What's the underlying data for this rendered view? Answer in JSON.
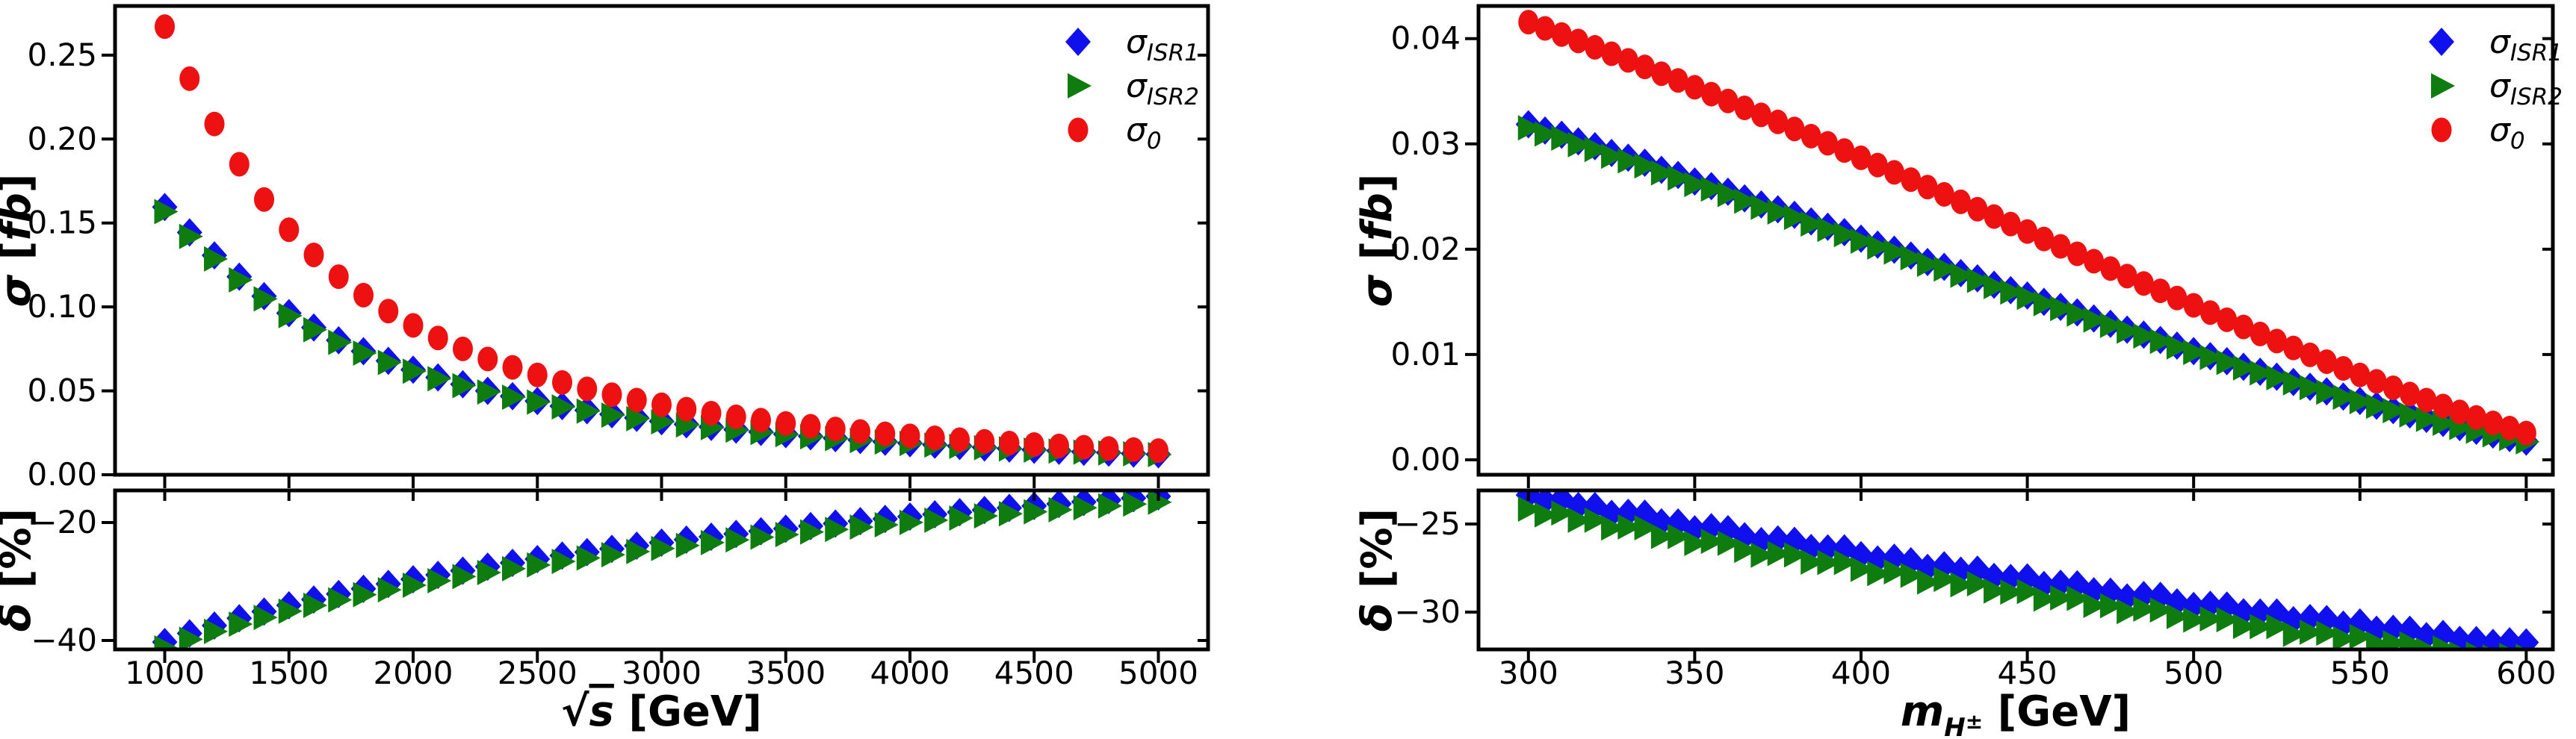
{
  "colors": {
    "sigma_isr1": "#1010ee",
    "sigma_isr2": "#0e7c0e",
    "sigma_0": "#ee1111",
    "axis": "#000000",
    "background": "#ffffff"
  },
  "legend": {
    "items": [
      {
        "series": "sigma_isr1",
        "base": "σ",
        "sub": "ISR1",
        "marker": "diamond"
      },
      {
        "series": "sigma_isr2",
        "base": "σ",
        "sub": "ISR2",
        "marker": "triangle-right"
      },
      {
        "series": "sigma_0",
        "base": "σ",
        "sub": "0",
        "marker": "circle"
      }
    ]
  },
  "chart_data": [
    {
      "id": "cross-section-vs-sqrt-s",
      "type": "scatter",
      "x_label": {
        "parts": [
          {
            "t": "√",
            "style": "normal"
          },
          {
            "t": "s",
            "style": "italic-overline"
          },
          {
            "t": " [GeV]",
            "style": "normal"
          }
        ]
      },
      "xlim": [
        800,
        5200
      ],
      "xticks": [
        1000,
        1500,
        2000,
        2500,
        3000,
        3500,
        4000,
        4500,
        5000
      ],
      "xtick_labels": [
        "1000",
        "1500",
        "2000",
        "2500",
        "3000",
        "3500",
        "4000",
        "4500",
        "5000"
      ],
      "x": [
        1000,
        1100,
        1200,
        1300,
        1400,
        1500,
        1600,
        1700,
        1800,
        1900,
        2000,
        2100,
        2200,
        2300,
        2400,
        2500,
        2600,
        2700,
        2800,
        2900,
        3000,
        3100,
        3200,
        3300,
        3400,
        3500,
        3600,
        3700,
        3800,
        3900,
        4000,
        4100,
        4200,
        4300,
        4400,
        4500,
        4600,
        4700,
        4800,
        4900,
        5000
      ],
      "panels": [
        {
          "name": "sigma",
          "y_label": {
            "sym": "σ",
            "rest": " [fb]",
            "rest_italic": "fb"
          },
          "ylim": [
            0,
            0.2793
          ],
          "yticks": [
            0,
            0.05,
            0.1,
            0.15,
            0.2,
            0.25
          ],
          "ytick_labels": [
            "0.00",
            "0.05",
            "0.10",
            "0.15",
            "0.20",
            "0.25"
          ],
          "series": [
            {
              "key": "sigma_isr1",
              "marker": "diamond",
              "values": [
                0.1595,
                0.1444,
                0.1307,
                0.118,
                0.1064,
                0.0963,
                0.0877,
                0.0801,
                0.0736,
                0.0679,
                0.0626,
                0.058,
                0.0539,
                0.05,
                0.0468,
                0.0439,
                0.0409,
                0.0384,
                0.036,
                0.0339,
                0.0319,
                0.0301,
                0.0285,
                0.0269,
                0.0255,
                0.0242,
                0.0229,
                0.0218,
                0.0207,
                0.0197,
                0.0188,
                0.0179,
                0.0171,
                0.0163,
                0.0156,
                0.0149,
                0.0143,
                0.0137,
                0.0132,
                0.0126,
                0.0122
              ]
            },
            {
              "key": "sigma_isr2",
              "marker": "triangle-right",
              "values": [
                0.1568,
                0.142,
                0.1286,
                0.1161,
                0.1048,
                0.0948,
                0.0864,
                0.0789,
                0.0725,
                0.0669,
                0.0617,
                0.0572,
                0.0531,
                0.0493,
                0.0462,
                0.0433,
                0.0404,
                0.0379,
                0.0355,
                0.0334,
                0.0315,
                0.0297,
                0.0281,
                0.0266,
                0.0252,
                0.0239,
                0.0226,
                0.0215,
                0.0204,
                0.0195,
                0.0186,
                0.0177,
                0.0169,
                0.0161,
                0.0154,
                0.0147,
                0.0141,
                0.0135,
                0.013,
                0.0125,
                0.012
              ]
            },
            {
              "key": "sigma_0",
              "marker": "circle",
              "values": [
                0.267,
                0.236,
                0.209,
                0.185,
                0.164,
                0.146,
                0.131,
                0.118,
                0.107,
                0.0975,
                0.089,
                0.0815,
                0.075,
                0.069,
                0.064,
                0.0595,
                0.055,
                0.0512,
                0.0477,
                0.0445,
                0.0417,
                0.0391,
                0.0367,
                0.0345,
                0.0325,
                0.0306,
                0.0289,
                0.0273,
                0.0258,
                0.0244,
                0.0232,
                0.022,
                0.0209,
                0.0199,
                0.0189,
                0.018,
                0.0172,
                0.0164,
                0.0157,
                0.015,
                0.0144
              ]
            }
          ]
        },
        {
          "name": "delta",
          "y_label": {
            "sym": "δ",
            "rest": " [%]",
            "rest_italic": ""
          },
          "ylim": [
            -41.52,
            -14.56
          ],
          "yticks": [
            -20,
            -40
          ],
          "ytick_labels": [
            "−20",
            "−40"
          ],
          "series": [
            {
              "key": "sigma_isr1",
              "marker": "diamond",
              "values": [
                -40.27,
                -38.8,
                -37.47,
                -36.24,
                -35.1,
                -34.04,
                -33.05,
                -32.12,
                -31.24,
                -30.41,
                -29.63,
                -28.88,
                -28.16,
                -27.48,
                -26.83,
                -26.2,
                -25.6,
                -25.02,
                -24.46,
                -23.92,
                -23.4,
                -22.9,
                -22.41,
                -21.94,
                -21.48,
                -21.04,
                -20.6,
                -20.18,
                -19.77,
                -19.38,
                -18.99,
                -18.61,
                -18.24,
                -17.88,
                -17.52,
                -17.18,
                -16.84,
                -16.51,
                -16.19,
                -15.87,
                -15.56
              ]
            },
            {
              "key": "sigma_isr2",
              "marker": "triangle-right",
              "values": [
                -41.27,
                -39.8,
                -38.47,
                -37.24,
                -36.1,
                -35.04,
                -34.05,
                -33.12,
                -32.24,
                -31.41,
                -30.63,
                -29.88,
                -29.16,
                -28.48,
                -27.83,
                -27.2,
                -26.6,
                -26.02,
                -25.46,
                -24.92,
                -24.4,
                -23.9,
                -23.41,
                -22.94,
                -22.48,
                -22.04,
                -21.6,
                -21.18,
                -20.77,
                -20.38,
                -19.99,
                -19.61,
                -19.24,
                -18.88,
                -18.52,
                -18.18,
                -17.84,
                -17.51,
                -17.19,
                -16.87,
                -16.56
              ]
            }
          ]
        }
      ]
    },
    {
      "id": "cross-section-vs-charged-higgs-mass",
      "type": "scatter",
      "x_label": {
        "parts": [
          {
            "t": "m",
            "style": "italic"
          },
          {
            "t": "H",
            "style": "sub-italic"
          },
          {
            "t": "±",
            "style": "sub-sup"
          },
          {
            "t": " [GeV]",
            "style": "normal"
          }
        ]
      },
      "xlim": [
        285,
        608
      ],
      "xticks": [
        300,
        350,
        400,
        450,
        500,
        550,
        600
      ],
      "xtick_labels": [
        "300",
        "350",
        "400",
        "450",
        "500",
        "550",
        "600"
      ],
      "x": [
        300,
        305,
        310,
        315,
        320,
        325,
        330,
        335,
        340,
        345,
        350,
        355,
        360,
        365,
        370,
        375,
        380,
        385,
        390,
        395,
        400,
        405,
        410,
        415,
        420,
        425,
        430,
        435,
        440,
        445,
        450,
        455,
        460,
        465,
        470,
        475,
        480,
        485,
        490,
        495,
        500,
        505,
        510,
        515,
        520,
        525,
        530,
        535,
        540,
        545,
        550,
        555,
        560,
        565,
        570,
        575,
        580,
        585,
        590,
        595,
        600
      ],
      "panels": [
        {
          "name": "sigma",
          "y_label": {
            "sym": "σ",
            "rest": " [fb]",
            "rest_italic": "fb"
          },
          "ylim": [
            -0.00142,
            0.0431
          ],
          "yticks": [
            0,
            0.01,
            0.02,
            0.03,
            0.04
          ],
          "ytick_labels": [
            "0.00",
            "0.01",
            "0.02",
            "0.03",
            "0.04"
          ],
          "series": [
            {
              "key": "sigma_isr1",
              "marker": "diamond",
              "values": [
                0.03186,
                0.03127,
                0.03087,
                0.03024,
                0.02978,
                0.02914,
                0.02869,
                0.02821,
                0.02754,
                0.02705,
                0.02643,
                0.02599,
                0.02546,
                0.02483,
                0.02425,
                0.02379,
                0.02327,
                0.02264,
                0.02213,
                0.02162,
                0.021,
                0.02043,
                0.01995,
                0.0194,
                0.01878,
                0.01832,
                0.01773,
                0.01723,
                0.01663,
                0.01611,
                0.0156,
                0.015,
                0.01452,
                0.014,
                0.01342,
                0.01292,
                0.01236,
                0.01189,
                0.01138,
                0.01084,
                0.01032,
                0.00984,
                0.00936,
                0.00883,
                0.00836,
                0.00789,
                0.00739,
                0.00694,
                0.00649,
                0.00601,
                0.00559,
                0.00514,
                0.00472,
                0.00431,
                0.00389,
                0.00351,
                0.00311,
                0.00275,
                0.0024,
                0.00206,
                0.00173
              ]
            },
            {
              "key": "sigma_isr2",
              "marker": "triangle-right",
              "values": [
                0.03153,
                0.03094,
                0.03055,
                0.02992,
                0.02947,
                0.02883,
                0.02839,
                0.02791,
                0.02725,
                0.02676,
                0.02615,
                0.02571,
                0.02519,
                0.02456,
                0.02399,
                0.02353,
                0.02302,
                0.02239,
                0.02189,
                0.02139,
                0.02077,
                0.02021,
                0.01973,
                0.01919,
                0.01857,
                0.01812,
                0.01753,
                0.01704,
                0.01645,
                0.01593,
                0.01543,
                0.01483,
                0.01436,
                0.01384,
                0.01327,
                0.01277,
                0.01222,
                0.01176,
                0.01125,
                0.01072,
                0.0102,
                0.00973,
                0.00925,
                0.00873,
                0.00826,
                0.0078,
                0.00731,
                0.00686,
                0.00642,
                0.00594,
                0.00553,
                0.00508,
                0.00467,
                0.00426,
                0.00384,
                0.00347,
                0.00307,
                0.00272,
                0.00237,
                0.00204,
                0.00171
              ]
            },
            {
              "key": "sigma_0",
              "marker": "circle",
              "values": [
                0.04157,
                0.04097,
                0.04039,
                0.03978,
                0.03917,
                0.03856,
                0.03793,
                0.03731,
                0.03667,
                0.03603,
                0.03538,
                0.03473,
                0.03408,
                0.03342,
                0.03276,
                0.03209,
                0.03142,
                0.03074,
                0.03006,
                0.02937,
                0.02868,
                0.02799,
                0.0273,
                0.02661,
                0.0259,
                0.02521,
                0.0245,
                0.0238,
                0.0231,
                0.02239,
                0.02168,
                0.02097,
                0.02027,
                0.01956,
                0.01886,
                0.01816,
                0.01745,
                0.01675,
                0.01605,
                0.01536,
                0.01467,
                0.01398,
                0.0133,
                0.01262,
                0.01195,
                0.01128,
                0.01062,
                0.00997,
                0.00932,
                0.00868,
                0.00806,
                0.00745,
                0.00684,
                0.00625,
                0.00567,
                0.00511,
                0.00455,
                0.00402,
                0.00351,
                0.00301,
                0.00254
              ]
            }
          ]
        },
        {
          "name": "delta",
          "y_label": {
            "sym": "δ",
            "rest": " [%]",
            "rest_italic": ""
          },
          "ylim": [
            -32.12,
            -23.09
          ],
          "yticks": [
            -25,
            -30
          ],
          "ytick_labels": [
            "−25",
            "−30"
          ],
          "series": [
            {
              "key": "sigma_isr1",
              "marker": "diamond",
              "values": [
                -23.35,
                -23.68,
                -23.57,
                -23.98,
                -23.98,
                -24.42,
                -24.36,
                -24.41,
                -24.9,
                -24.91,
                -25.3,
                -25.18,
                -25.29,
                -25.69,
                -25.97,
                -25.87,
                -25.95,
                -26.36,
                -26.38,
                -26.38,
                -26.77,
                -27.01,
                -26.91,
                -27.11,
                -27.49,
                -27.34,
                -27.65,
                -27.59,
                -28.0,
                -28.06,
                -28.03,
                -28.46,
                -28.39,
                -28.42,
                -28.82,
                -28.84,
                -29.17,
                -29.03,
                -29.08,
                -29.45,
                -29.65,
                -29.58,
                -29.63,
                -30.01,
                -30.02,
                -30.02,
                -30.46,
                -30.34,
                -30.4,
                -30.71,
                -30.59,
                -31.0,
                -30.95,
                -31.0,
                -31.37,
                -31.24,
                -31.58,
                -31.59,
                -31.75,
                -31.66,
                -31.72
              ]
            },
            {
              "key": "sigma_isr2",
              "marker": "triangle-right",
              "values": [
                -24.15,
                -24.48,
                -24.37,
                -24.78,
                -24.78,
                -25.22,
                -25.16,
                -25.21,
                -25.7,
                -25.71,
                -26.1,
                -25.98,
                -26.09,
                -26.49,
                -26.77,
                -26.67,
                -26.75,
                -27.16,
                -27.18,
                -27.18,
                -27.57,
                -27.81,
                -27.71,
                -27.91,
                -28.29,
                -28.14,
                -28.45,
                -28.39,
                -28.8,
                -28.86,
                -28.83,
                -29.26,
                -29.19,
                -29.22,
                -29.62,
                -29.64,
                -29.97,
                -29.83,
                -29.88,
                -30.25,
                -30.45,
                -30.38,
                -30.43,
                -30.81,
                -30.82,
                -30.82,
                -31.26,
                -31.14,
                -31.2,
                -31.51,
                -31.39,
                -31.8,
                -31.75,
                -31.8,
                -32.17,
                -32.04,
                -32.38,
                -32.39,
                -32.55,
                -32.46,
                -32.52
              ]
            }
          ]
        }
      ]
    }
  ]
}
